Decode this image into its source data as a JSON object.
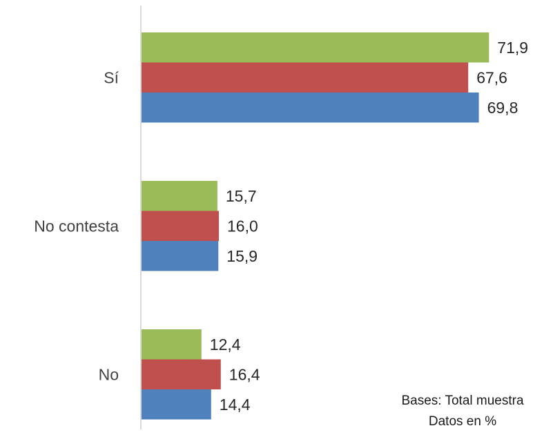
{
  "chart_data": {
    "type": "bar",
    "orientation": "horizontal",
    "categories": [
      "Sí",
      "No contesta",
      "No"
    ],
    "series": [
      {
        "values": [
          71.9,
          15.7,
          12.4
        ],
        "labels": [
          "71,9",
          "15,7",
          "12,4"
        ],
        "color": "#9BBB59"
      },
      {
        "values": [
          67.6,
          16.0,
          16.4
        ],
        "labels": [
          "67,6",
          "16,0",
          "16,4"
        ],
        "color": "#C0504D"
      },
      {
        "values": [
          69.8,
          15.9,
          14.4
        ],
        "labels": [
          "69,8",
          "15,9",
          "14,4"
        ],
        "color": "#4F81BD"
      }
    ],
    "title": "",
    "xlabel": "",
    "ylabel": "",
    "xlim": [
      0,
      80
    ],
    "grid": false,
    "legend": "none"
  },
  "notes": {
    "line1": "Bases: Total muestra",
    "line2": "Datos en %"
  }
}
